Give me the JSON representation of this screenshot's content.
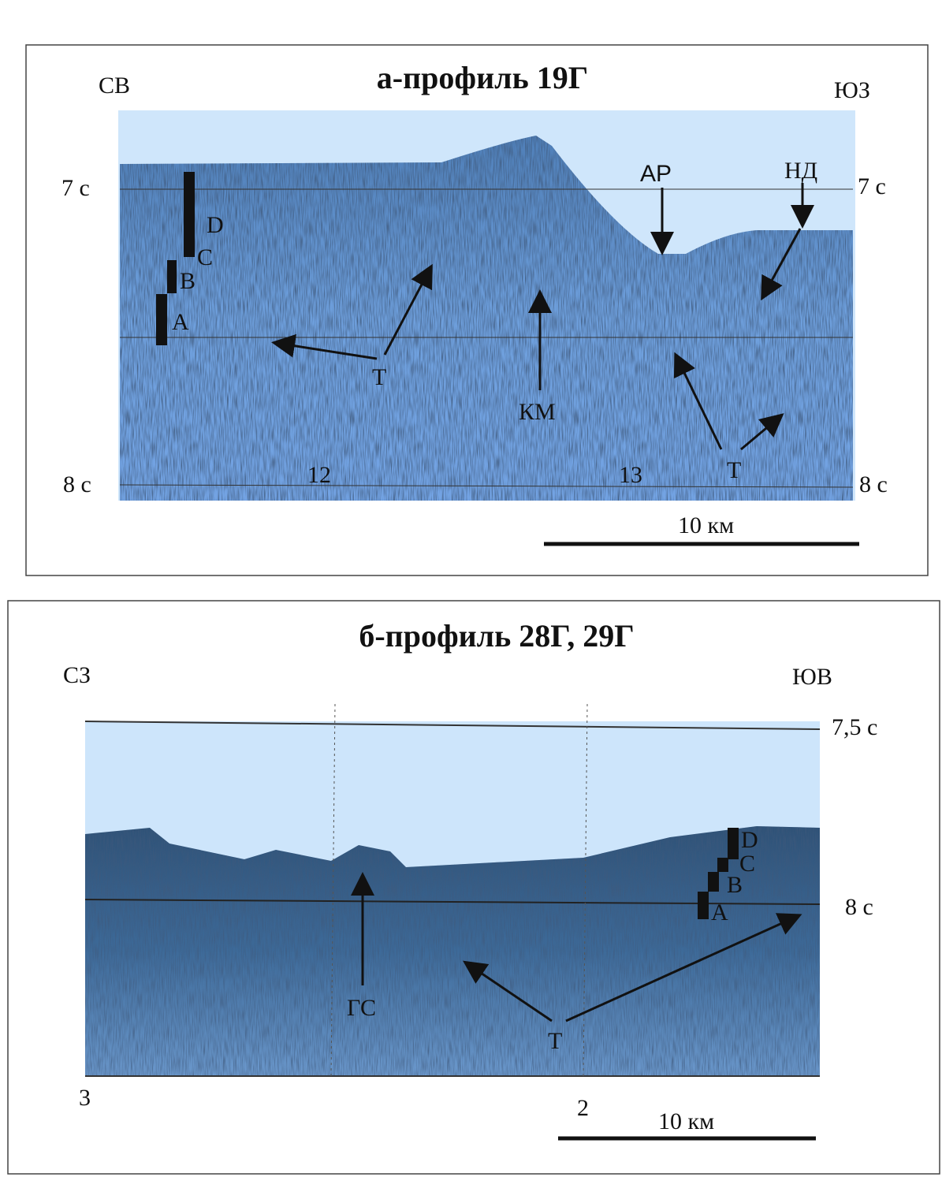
{
  "panels": [
    {
      "title": "а-профиль 19Г",
      "left_direction": "СВ",
      "right_direction": "ЮЗ",
      "time_left": [
        "7 с",
        "8 с"
      ],
      "time_right": [
        "7 с",
        "8 с"
      ],
      "units": [
        "D",
        "C",
        "B",
        "A"
      ],
      "annotations": [
        "АР",
        "НД",
        "Т",
        "КМ",
        "Т"
      ],
      "trace_numbers": [
        "12",
        "13"
      ],
      "scale_bar": "10 км"
    },
    {
      "title": "б-профиль 28Г, 29Г",
      "left_direction": "СЗ",
      "right_direction": "ЮВ",
      "time_right": [
        "7,5 с",
        "8 с"
      ],
      "units": [
        "D",
        "C",
        "B",
        "A"
      ],
      "annotations": [
        "ГС",
        "Т"
      ],
      "trace_numbers": [
        "3",
        "2"
      ],
      "scale_bar": "10 км"
    }
  ]
}
